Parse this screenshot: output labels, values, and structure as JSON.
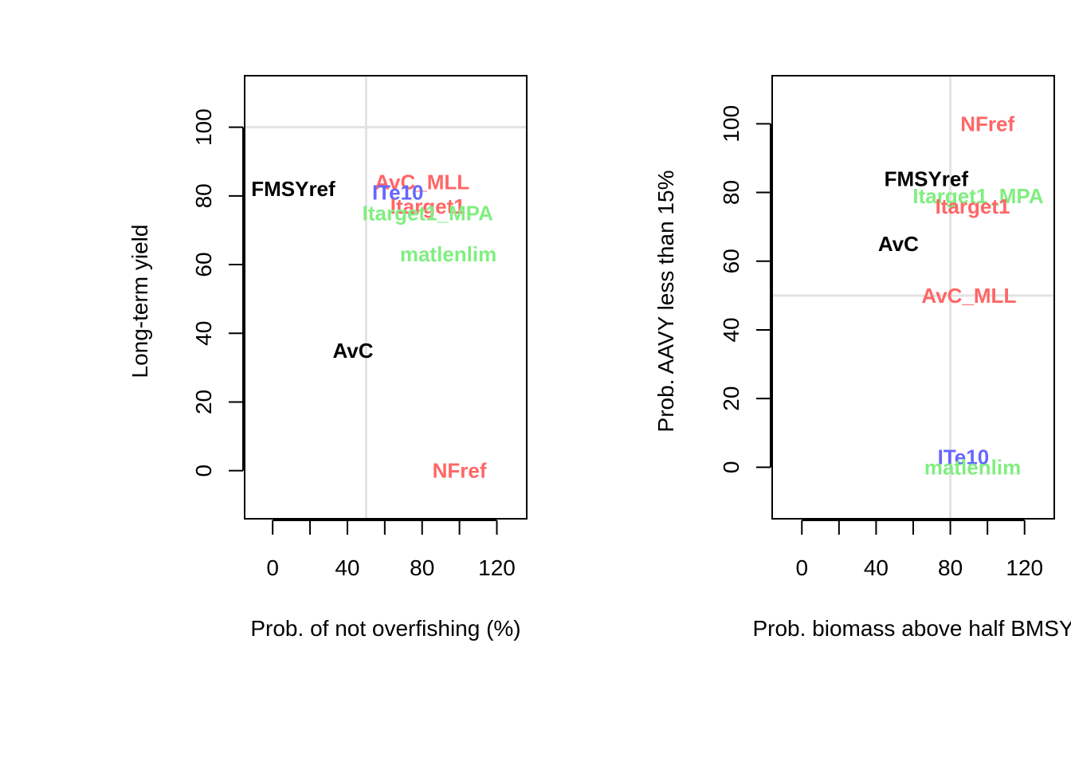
{
  "colors": {
    "black": "#000000",
    "red": "#ff6666",
    "blue": "#6666ff",
    "green": "#80ee80",
    "grid": "#e3e3e3"
  },
  "chart_data": [
    {
      "type": "scatter",
      "title": "",
      "xlabel": "Prob. of not overfishing (%)",
      "ylabel": "Long-term yield",
      "xlim": [
        -15,
        136
      ],
      "ylim": [
        -14,
        115
      ],
      "xticks": [
        0,
        20,
        40,
        60,
        80,
        100,
        120
      ],
      "xtick_labels": [
        "0",
        "",
        "40",
        "",
        "80",
        "",
        "120"
      ],
      "yticks": [
        0,
        20,
        40,
        60,
        80,
        100
      ],
      "ytick_labels": [
        "0",
        "20",
        "40",
        "60",
        "80",
        "100"
      ],
      "reference_lines": {
        "x": 50,
        "y": 100
      },
      "points": [
        {
          "label": "FMSYref",
          "x": 11,
          "y": 82,
          "color": "black"
        },
        {
          "label": "AvC_MLL",
          "x": 80,
          "y": 84,
          "color": "red"
        },
        {
          "label": "ITe10",
          "x": 67,
          "y": 81,
          "color": "blue"
        },
        {
          "label": "Itarget1",
          "x": 83,
          "y": 77,
          "color": "red"
        },
        {
          "label": "Itarget1_MPA",
          "x": 83,
          "y": 75,
          "color": "green"
        },
        {
          "label": "matlenlim",
          "x": 94,
          "y": 63,
          "color": "green"
        },
        {
          "label": "AvC",
          "x": 43,
          "y": 35,
          "color": "black"
        },
        {
          "label": "NFref",
          "x": 100,
          "y": 0,
          "color": "red"
        }
      ]
    },
    {
      "type": "scatter",
      "title": "",
      "xlabel": "Prob. biomass above half BMSY",
      "ylabel": "Prob. AAVY less than 15%",
      "xlim": [
        -16,
        136
      ],
      "ylim": [
        -15,
        114
      ],
      "xticks": [
        0,
        20,
        40,
        60,
        80,
        100,
        120
      ],
      "xtick_labels": [
        "0",
        "",
        "40",
        "",
        "80",
        "",
        "120"
      ],
      "yticks": [
        0,
        20,
        40,
        60,
        80,
        100
      ],
      "ytick_labels": [
        "0",
        "20",
        "40",
        "60",
        "80",
        "100"
      ],
      "reference_lines": {
        "x": 80,
        "y": 50
      },
      "points": [
        {
          "label": "NFref",
          "x": 100,
          "y": 100,
          "color": "red"
        },
        {
          "label": "FMSYref",
          "x": 67,
          "y": 84,
          "color": "black"
        },
        {
          "label": "Itarget1_MPA",
          "x": 95,
          "y": 79,
          "color": "green"
        },
        {
          "label": "Itarget1",
          "x": 92,
          "y": 76,
          "color": "red"
        },
        {
          "label": "AvC",
          "x": 52,
          "y": 65,
          "color": "black"
        },
        {
          "label": "AvC_MLL",
          "x": 90,
          "y": 50,
          "color": "red"
        },
        {
          "label": "ITe10",
          "x": 87,
          "y": 3,
          "color": "blue"
        },
        {
          "label": "matlenlim",
          "x": 92,
          "y": 0,
          "color": "green"
        }
      ]
    }
  ]
}
